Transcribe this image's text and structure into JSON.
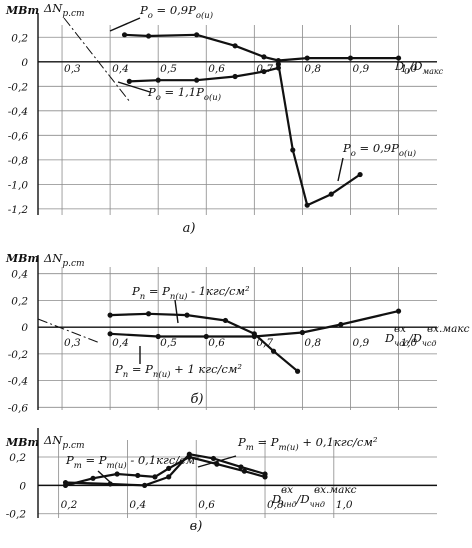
{
  "chart_data": [
    {
      "panel": "a)",
      "type": "line",
      "unit": "МВт",
      "ylabel": "ΔN",
      "ylabel_sub": "р.ст",
      "xlabel": "D",
      "xlabel_sub": "0",
      "xlabel_tail": "/D",
      "xlabel_tail_sub": "макс",
      "xlim": [
        0.25,
        1.08
      ],
      "ylim": [
        -1.25,
        0.3
      ],
      "x_ticks": [
        "0,3",
        "0,4",
        "0,5",
        "0,6",
        "0,7",
        "0,8",
        "0,9",
        "1,0"
      ],
      "y_ticks": [
        "0,2",
        "0",
        "-0,2",
        "-0,4",
        "-0,6",
        "-0,8",
        "-1,0",
        "-1,2"
      ],
      "series": [
        {
          "name": "P0 = 0,9P0(и)",
          "x": [
            0.43,
            0.48,
            0.58,
            0.66,
            0.72,
            0.75,
            0.81,
            0.9,
            1.0
          ],
          "y": [
            0.22,
            0.21,
            0.22,
            0.13,
            0.04,
            0.01,
            0.03,
            0.03,
            0.03
          ]
        },
        {
          "name": "P0 = 1,1P0(и)",
          "x": [
            0.44,
            0.5,
            0.58,
            0.66,
            0.72,
            0.75
          ],
          "y": [
            -0.16,
            -0.15,
            -0.15,
            -0.12,
            -0.08,
            -0.05
          ]
        },
        {
          "name": "P0 = 0,9P0(и) tail",
          "x": [
            0.75,
            0.78,
            0.81,
            0.86,
            0.92
          ],
          "y": [
            -0.02,
            -0.72,
            -1.17,
            -1.08,
            -0.92
          ]
        }
      ],
      "annotations": [
        {
          "text": "P",
          "sub": "o",
          "rest": " = 0,9P",
          "sub2": "o(и)"
        },
        {
          "text": "P",
          "sub": "o",
          "rest": " = 1,1P",
          "sub2": "o(и)"
        },
        {
          "text": "P",
          "sub": "o",
          "rest": " = 0,9P",
          "sub2": "o(и)"
        }
      ]
    },
    {
      "panel": "б)",
      "type": "line",
      "unit": "МВт",
      "ylabel": "ΔN",
      "ylabel_sub": "р.ст",
      "xlabel": "D",
      "xlabel_sub": "чсд",
      "xlabel_sup": "вх",
      "xlabel_tail": "/D",
      "xlabel_tail_sub": "чсд",
      "xlabel_tail_sup": "вх.макс",
      "xlim": [
        0.25,
        1.08
      ],
      "ylim": [
        -0.62,
        0.45
      ],
      "x_ticks": [
        "0,3",
        "0,4",
        "0,5",
        "0,6",
        "0,7",
        "0,8",
        "0,9",
        "1,0"
      ],
      "y_ticks": [
        "0,4",
        "0,2",
        "0",
        "-0,2",
        "-0,4",
        "-0,6"
      ],
      "series": [
        {
          "name": "Pп = Pп(и) - 1кгс/см²",
          "x": [
            0.4,
            0.48,
            0.56,
            0.64,
            0.7,
            0.74,
            0.79
          ],
          "y": [
            0.09,
            0.1,
            0.09,
            0.05,
            -0.05,
            -0.18,
            -0.33
          ]
        },
        {
          "name": "Pп = Pп(и) + 1кгс/см²",
          "x": [
            0.4,
            0.5,
            0.6,
            0.7,
            0.8,
            0.88,
            1.0
          ],
          "y": [
            -0.05,
            -0.07,
            -0.07,
            -0.07,
            -0.04,
            0.02,
            0.12
          ]
        }
      ],
      "annotations": [
        {
          "text": "P",
          "sub": "п",
          "rest": " = P",
          "sub2": "п(и)",
          "rest2": " - 1кгс/см²"
        },
        {
          "text": "P",
          "sub": "п",
          "rest": " = P",
          "sub2": "п(и)",
          "rest2": " + 1 кгс/см²"
        }
      ]
    },
    {
      "panel": "в)",
      "type": "line",
      "unit": "МВт",
      "ylabel": "ΔN",
      "ylabel_sub": "р.ст",
      "xlabel": "D",
      "xlabel_sub": "чнд",
      "xlabel_sup": "вх",
      "xlabel_tail": "/D",
      "xlabel_tail_sub": "чнд",
      "xlabel_tail_sup": "вх.макс",
      "xlim": [
        0.14,
        1.3
      ],
      "ylim": [
        -0.23,
        0.32
      ],
      "x_ticks": [
        "0,2",
        "0,4",
        "0,6",
        "0,8",
        "1,0"
      ],
      "y_ticks": [
        "0,2",
        "0",
        "-0,2"
      ],
      "series": [
        {
          "name": "Pт = Pт(и) - 0,1кгс/см²",
          "x": [
            0.22,
            0.3,
            0.37,
            0.43,
            0.48,
            0.52,
            0.58,
            0.66,
            0.74,
            0.8
          ],
          "y": [
            0.0,
            0.05,
            0.08,
            0.07,
            0.06,
            0.12,
            0.2,
            0.15,
            0.1,
            0.06
          ]
        },
        {
          "name": "Pт = Pт(и) + 0,1кгс/см²",
          "x": [
            0.22,
            0.35,
            0.45,
            0.52,
            0.58,
            0.65,
            0.73,
            0.8
          ],
          "y": [
            0.02,
            0.01,
            0.0,
            0.06,
            0.22,
            0.19,
            0.13,
            0.08
          ]
        }
      ],
      "annotations": [
        {
          "text": "P",
          "sub": "т",
          "rest": " = P",
          "sub2": "т(и)",
          "rest2": " - 0,1кгс/см²"
        },
        {
          "text": "P",
          "sub": "т",
          "rest": " = P",
          "sub2": "т(и)",
          "rest2": " + 0,1кгс/см²"
        }
      ]
    }
  ]
}
